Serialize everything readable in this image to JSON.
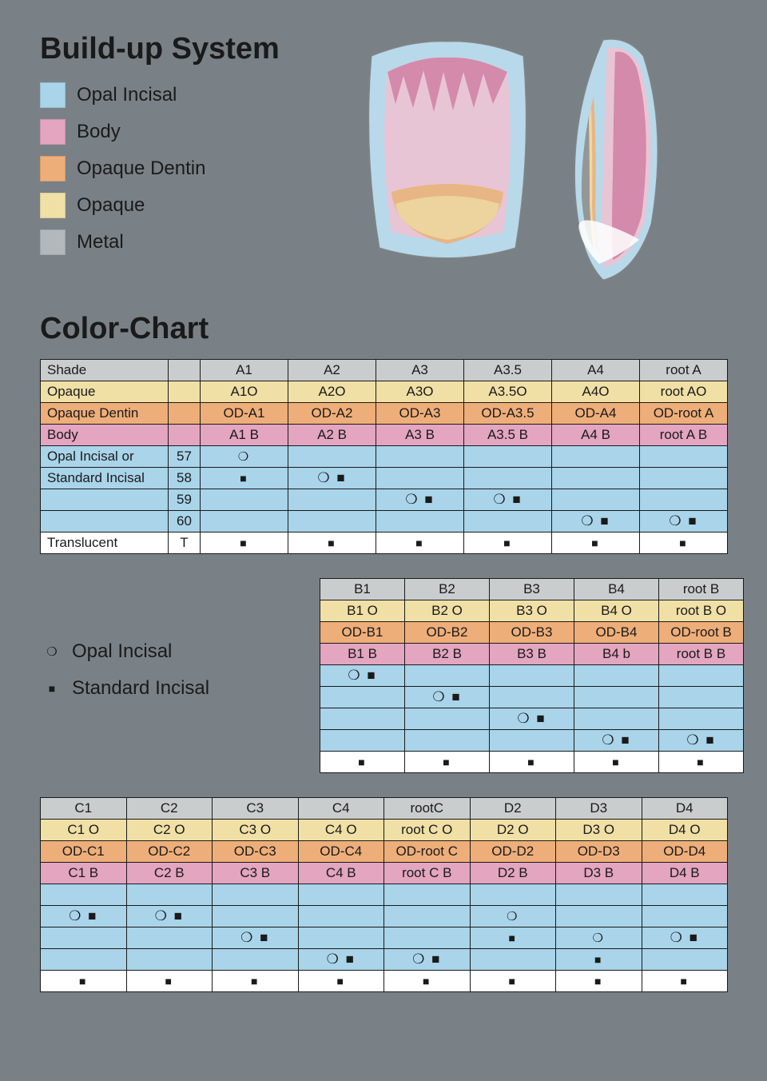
{
  "titles": {
    "buildup": "Build-up System",
    "colorchart": "Color-Chart"
  },
  "colors": {
    "opal_incisal": "#a9d4ea",
    "body": "#e3a5c0",
    "opaque_dentin": "#eeae79",
    "opaque": "#f0e0a6",
    "metal": "#b2b8bb",
    "shade_header": "#c9cdce",
    "translucent": "#ffffff"
  },
  "legend": [
    {
      "label": "Opal Incisal",
      "color_key": "opal_incisal"
    },
    {
      "label": "Body",
      "color_key": "body"
    },
    {
      "label": "Opaque Dentin",
      "color_key": "opaque_dentin"
    },
    {
      "label": "Opaque",
      "color_key": "opaque"
    },
    {
      "label": "Metal",
      "color_key": "metal"
    }
  ],
  "symbols": {
    "circle": "❍",
    "square": "■",
    "both": "❍ ■"
  },
  "key": {
    "opal": "Opal Incisal",
    "standard": "Standard Incisal"
  },
  "table_a": {
    "rows": [
      {
        "bg": "shade_header",
        "label": "Shade",
        "num": "",
        "cells": [
          "A1",
          "A2",
          "A3",
          "A3.5",
          "A4",
          "root A"
        ]
      },
      {
        "bg": "opaque",
        "label": "Opaque",
        "num": "",
        "cells": [
          "A1O",
          "A2O",
          "A3O",
          "A3.5O",
          "A4O",
          "root AO"
        ]
      },
      {
        "bg": "opaque_dentin",
        "label": "Opaque Dentin",
        "num": "",
        "cells": [
          "OD-A1",
          "OD-A2",
          "OD-A3",
          "OD-A3.5",
          "OD-A4",
          "OD-root A"
        ]
      },
      {
        "bg": "body",
        "label": "Body",
        "num": "",
        "cells": [
          "A1 B",
          "A2 B",
          "A3 B",
          "A3.5 B",
          "A4 B",
          "root A B"
        ]
      },
      {
        "bg": "opal_incisal",
        "label": "Opal Incisal or",
        "num": "57",
        "sym": [
          "circle",
          "",
          "",
          "",
          "",
          ""
        ]
      },
      {
        "bg": "opal_incisal",
        "label": "Standard Incisal",
        "num": "58",
        "sym": [
          "square",
          "both",
          "",
          "",
          "",
          ""
        ]
      },
      {
        "bg": "opal_incisal",
        "label": "",
        "num": "59",
        "sym": [
          "",
          "",
          "both",
          "both",
          "",
          ""
        ]
      },
      {
        "bg": "opal_incisal",
        "label": "",
        "num": "60",
        "sym": [
          "",
          "",
          "",
          "",
          "both",
          "both"
        ]
      },
      {
        "bg": "translucent",
        "label": "Translucent",
        "num": "T",
        "sym": [
          "square",
          "square",
          "square",
          "square",
          "square",
          "square"
        ]
      }
    ]
  },
  "table_b": {
    "rows": [
      {
        "bg": "shade_header",
        "cells": [
          "B1",
          "B2",
          "B3",
          "B4",
          "root B"
        ]
      },
      {
        "bg": "opaque",
        "cells": [
          "B1 O",
          "B2 O",
          "B3 O",
          "B4 O",
          "root B O"
        ]
      },
      {
        "bg": "opaque_dentin",
        "cells": [
          "OD-B1",
          "OD-B2",
          "OD-B3",
          "OD-B4",
          "OD-root B"
        ]
      },
      {
        "bg": "body",
        "cells": [
          "B1 B",
          "B2 B",
          "B3 B",
          "B4 b",
          "root B B"
        ]
      },
      {
        "bg": "opal_incisal",
        "sym": [
          "both",
          "",
          "",
          "",
          ""
        ]
      },
      {
        "bg": "opal_incisal",
        "sym": [
          "",
          "both",
          "",
          "",
          ""
        ]
      },
      {
        "bg": "opal_incisal",
        "sym": [
          "",
          "",
          "both",
          "",
          ""
        ]
      },
      {
        "bg": "opal_incisal",
        "sym": [
          "",
          "",
          "",
          "both",
          "both"
        ]
      },
      {
        "bg": "translucent",
        "sym": [
          "square",
          "square",
          "square",
          "square",
          "square"
        ]
      }
    ]
  },
  "table_cd": {
    "rows": [
      {
        "bg": "shade_header",
        "cells": [
          "C1",
          "C2",
          "C3",
          "C4",
          "rootC",
          "D2",
          "D3",
          "D4"
        ]
      },
      {
        "bg": "opaque",
        "cells": [
          "C1 O",
          "C2 O",
          "C3 O",
          "C4 O",
          "root C O",
          "D2 O",
          "D3 O",
          "D4 O"
        ]
      },
      {
        "bg": "opaque_dentin",
        "cells": [
          "OD-C1",
          "OD-C2",
          "OD-C3",
          "OD-C4",
          "OD-root C",
          "OD-D2",
          "OD-D3",
          "OD-D4"
        ]
      },
      {
        "bg": "body",
        "cells": [
          "C1 B",
          "C2 B",
          "C3 B",
          "C4 B",
          "root C B",
          "D2 B",
          "D3 B",
          "D4 B"
        ]
      },
      {
        "bg": "opal_incisal",
        "sym": [
          "",
          "",
          "",
          "",
          "",
          "",
          "",
          ""
        ]
      },
      {
        "bg": "opal_incisal",
        "sym": [
          "both",
          "both",
          "",
          "",
          "",
          "circle",
          "",
          ""
        ]
      },
      {
        "bg": "opal_incisal",
        "sym": [
          "",
          "",
          "both",
          "",
          "",
          "square",
          "circle",
          "both"
        ]
      },
      {
        "bg": "opal_incisal",
        "sym": [
          "",
          "",
          "",
          "both",
          "both",
          "",
          "square",
          ""
        ]
      },
      {
        "bg": "translucent",
        "sym": [
          "square",
          "square",
          "square",
          "square",
          "square",
          "square",
          "square",
          "square"
        ]
      }
    ]
  }
}
